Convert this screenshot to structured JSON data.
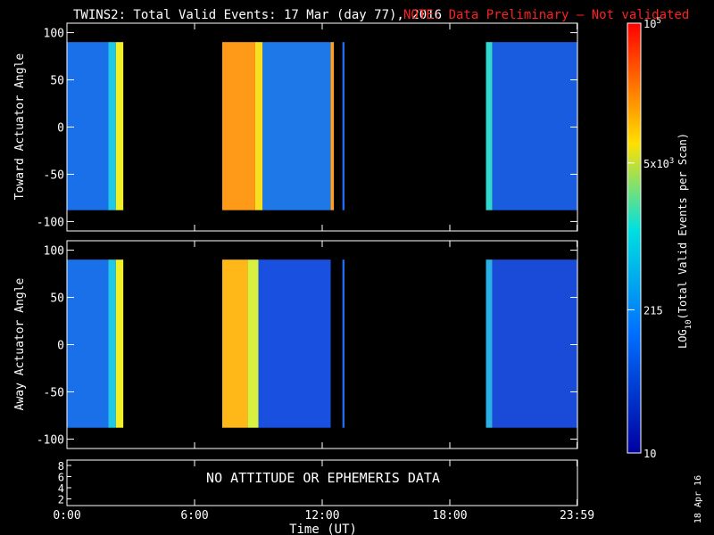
{
  "title": {
    "main": "TWINS2: Total Valid Events: 17 Mar (day  77), 2016",
    "note": "NOTE: Data Preliminary — Not validated",
    "note_color": "#ff2020"
  },
  "chart_data": [
    {
      "type": "heatmap",
      "panel": "toward",
      "ylabel": "Toward Actuator Angle",
      "ylim": [
        -110,
        110
      ],
      "yticks": [
        "100",
        "50",
        "0",
        "-50",
        "-100"
      ],
      "xlim_hours": [
        0,
        24
      ],
      "data_angle_range": [
        -88,
        90
      ],
      "blocks": [
        {
          "start_h": 0.0,
          "end_h": 1.95,
          "color": "#1a70e8",
          "label": "blue"
        },
        {
          "start_h": 1.95,
          "end_h": 2.3,
          "color": "#20c8e8",
          "label": "cyan"
        },
        {
          "start_h": 2.3,
          "end_h": 2.65,
          "color": "#f0f028",
          "label": "yellow"
        },
        {
          "start_h": 7.3,
          "end_h": 8.85,
          "color": "#ff9a18",
          "label": "orange"
        },
        {
          "start_h": 8.85,
          "end_h": 9.2,
          "color": "#f8e020",
          "label": "yellow"
        },
        {
          "start_h": 9.2,
          "end_h": 12.4,
          "color": "#1f78e8",
          "label": "blue"
        },
        {
          "start_h": 12.4,
          "end_h": 12.55,
          "color": "#ffa020",
          "label": "orange"
        },
        {
          "start_h": 12.95,
          "end_h": 13.05,
          "color": "#1f6cf0",
          "label": "blue"
        },
        {
          "start_h": 19.7,
          "end_h": 20.0,
          "color": "#30d8d0",
          "label": "cyan"
        },
        {
          "start_h": 20.0,
          "end_h": 23.98,
          "color": "#1a5ce0",
          "label": "blue"
        }
      ]
    },
    {
      "type": "heatmap",
      "panel": "away",
      "ylabel": "Away Actuator Angle",
      "ylim": [
        -110,
        110
      ],
      "yticks": [
        "100",
        "50",
        "0",
        "-50",
        "-100"
      ],
      "xlim_hours": [
        0,
        24
      ],
      "data_angle_range": [
        -88,
        90
      ],
      "blocks": [
        {
          "start_h": 0.0,
          "end_h": 1.95,
          "color": "#1a70e8",
          "label": "blue"
        },
        {
          "start_h": 1.95,
          "end_h": 2.3,
          "color": "#20c8e8",
          "label": "cyan"
        },
        {
          "start_h": 2.3,
          "end_h": 2.65,
          "color": "#f0f028",
          "label": "yellow"
        },
        {
          "start_h": 7.3,
          "end_h": 8.5,
          "color": "#ffb818",
          "label": "orange-yellow"
        },
        {
          "start_h": 8.5,
          "end_h": 9.0,
          "color": "#d8f040",
          "label": "yellow-green"
        },
        {
          "start_h": 9.0,
          "end_h": 12.4,
          "color": "#1a50e0",
          "label": "blue"
        },
        {
          "start_h": 12.95,
          "end_h": 13.05,
          "color": "#1f6cf0",
          "label": "blue"
        },
        {
          "start_h": 19.7,
          "end_h": 20.0,
          "color": "#2ab0e8",
          "label": "cyan"
        },
        {
          "start_h": 20.0,
          "end_h": 23.98,
          "color": "#1a4ad8",
          "label": "blue"
        }
      ]
    }
  ],
  "x_axis": {
    "ticks": [
      "0:00",
      "6:00",
      "12:00",
      "18:00",
      "23:59"
    ],
    "tick_hours": [
      0,
      6,
      12,
      18,
      23.98
    ],
    "label": "Time (UT)"
  },
  "bottom_panel": {
    "yticks": [
      "8",
      "6",
      "4",
      "2"
    ],
    "message": "NO ATTITUDE OR EPHEMERIS DATA"
  },
  "colorbar": {
    "label": "LOG10(Total Valid Events per Scan)",
    "label_parts": {
      "prefix": "LOG",
      "sub": "10",
      "suffix": "(Total Valid Events per Scan)"
    },
    "tick_labels": [
      {
        "value": 100000,
        "base": "10",
        "sup": "5"
      },
      {
        "value": 5000,
        "base": "5x10",
        "sup": "3"
      },
      {
        "value": 215,
        "base": "215",
        "sup": ""
      },
      {
        "value": 10,
        "base": "10",
        "sup": ""
      }
    ],
    "log_range": [
      1,
      5
    ],
    "gradient": [
      "#ff0000",
      "#ff8000",
      "#ffff00",
      "#00e0e0",
      "#0080ff",
      "#0000a0"
    ]
  },
  "date_stamp": "18 Apr 16"
}
